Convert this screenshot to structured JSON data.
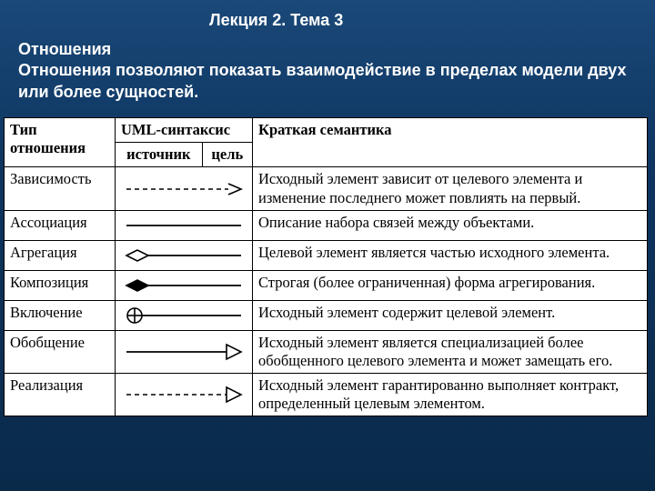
{
  "lecture_header": "Лекция 2. Тема 3",
  "section_title": "Отношения",
  "section_text": "Отношения позволяют показать взаимодействие в пределах модели двух или более сущностей.",
  "table": {
    "header": {
      "type_col": "Тип отношения",
      "uml_col": "UML-синтаксис",
      "sub_source": "источник",
      "sub_target": "цель",
      "semantics_col": "Краткая семантика"
    },
    "rows": [
      {
        "name": "Зависимость",
        "notation": "dependency",
        "semantics": "Исходный элемент зависит от целевого элемента и изменение последнего может повлиять на первый."
      },
      {
        "name": "Ассоциация",
        "notation": "association",
        "semantics": "Описание набора связей между объектами."
      },
      {
        "name": "Агрегация",
        "notation": "aggregation",
        "semantics": "Целевой элемент является частью исход­ного элемента."
      },
      {
        "name": "Композиция",
        "notation": "composition",
        "semantics": "Строгая (более ограниченная) форма агрегирования."
      },
      {
        "name": "Включение",
        "notation": "containment",
        "semantics": "Исходный элемент содержит целевой эле­мент."
      },
      {
        "name": "Обобщение",
        "notation": "generalization",
        "semantics": "Исходный элемент является специализа­цией более обобщенного целевого элемен­та и может замещать его."
      },
      {
        "name": "Реализация",
        "notation": "realization",
        "semantics": "Исходный элемент гарантированно вы­полняет контракт, определенный целе­вым элементом."
      }
    ]
  },
  "style": {
    "text_color": "#ffffff",
    "background_gradient": [
      "#1a4878",
      "#0d3560",
      "#0a2a4a"
    ],
    "table_bg": "#ffffff",
    "table_border": "#000000",
    "header_fontsize": 18,
    "body_fontsize": 16.5,
    "font_body": "Times New Roman",
    "font_header": "Arial",
    "notation_stroke": "#000000",
    "col_widths": {
      "type": 122,
      "uml": 150,
      "semantics_rest": true
    }
  }
}
